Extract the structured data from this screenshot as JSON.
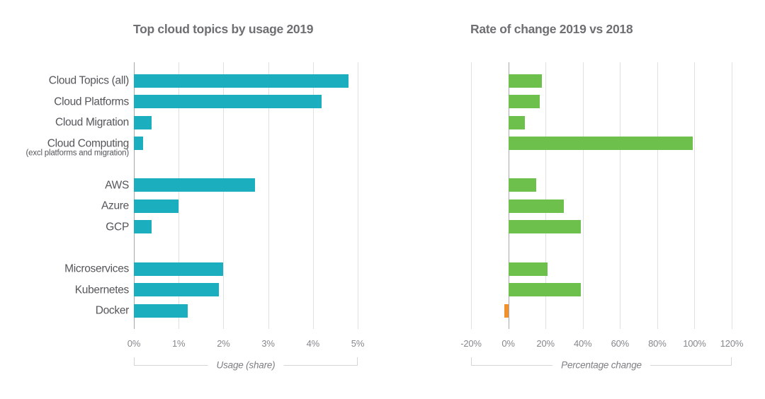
{
  "page": {
    "background": "#ffffff"
  },
  "chart_data": [
    {
      "type": "bar",
      "orientation": "horizontal",
      "title": "Top cloud topics by usage 2019",
      "xlabel": "Usage (share)",
      "categories": [
        "Cloud Topics (all)",
        "Cloud Platforms",
        "Cloud Migration",
        "Cloud Computing",
        "AWS",
        "Azure",
        "GCP",
        "Microservices",
        "Kubernetes",
        "Docker"
      ],
      "category_note": {
        "index": 3,
        "text": "(excl platforms and migration)"
      },
      "groups": [
        0,
        0,
        0,
        0,
        1,
        1,
        1,
        2,
        2,
        2
      ],
      "values": [
        4.8,
        4.2,
        0.4,
        0.2,
        2.7,
        1.0,
        0.4,
        2.0,
        1.9,
        1.2
      ],
      "unit": "percent share",
      "xlim": [
        0,
        5
      ],
      "tick_values": [
        0,
        1,
        2,
        3,
        4,
        5
      ],
      "tick_labels": [
        "0%",
        "1%",
        "2%",
        "3%",
        "4%",
        "5%"
      ],
      "grid": true,
      "legend": "none",
      "bar_color": "#1baebf",
      "negative_bar_color": "#f0912d",
      "show_category_labels": true
    },
    {
      "type": "bar",
      "orientation": "horizontal",
      "title": "Rate of change 2019 vs 2018",
      "xlabel": "Percentage change",
      "categories": [
        "Cloud Topics (all)",
        "Cloud Platforms",
        "Cloud Migration",
        "Cloud Computing",
        "AWS",
        "Azure",
        "GCP",
        "Microservices",
        "Kubernetes",
        "Docker"
      ],
      "groups": [
        0,
        0,
        0,
        0,
        1,
        1,
        1,
        2,
        2,
        2
      ],
      "values": [
        18,
        17,
        9,
        99,
        15,
        30,
        39,
        21,
        39,
        -2
      ],
      "unit": "percent change",
      "xlim": [
        -20,
        120
      ],
      "tick_values": [
        -20,
        0,
        20,
        40,
        60,
        80,
        100,
        120
      ],
      "tick_labels": [
        "-20%",
        "0%",
        "20%",
        "40%",
        "60%",
        "80%",
        "100%",
        "120%"
      ],
      "grid": true,
      "legend": "none",
      "bar_color": "#6cc04b",
      "negative_bar_color": "#f0912d",
      "show_category_labels": false
    }
  ]
}
